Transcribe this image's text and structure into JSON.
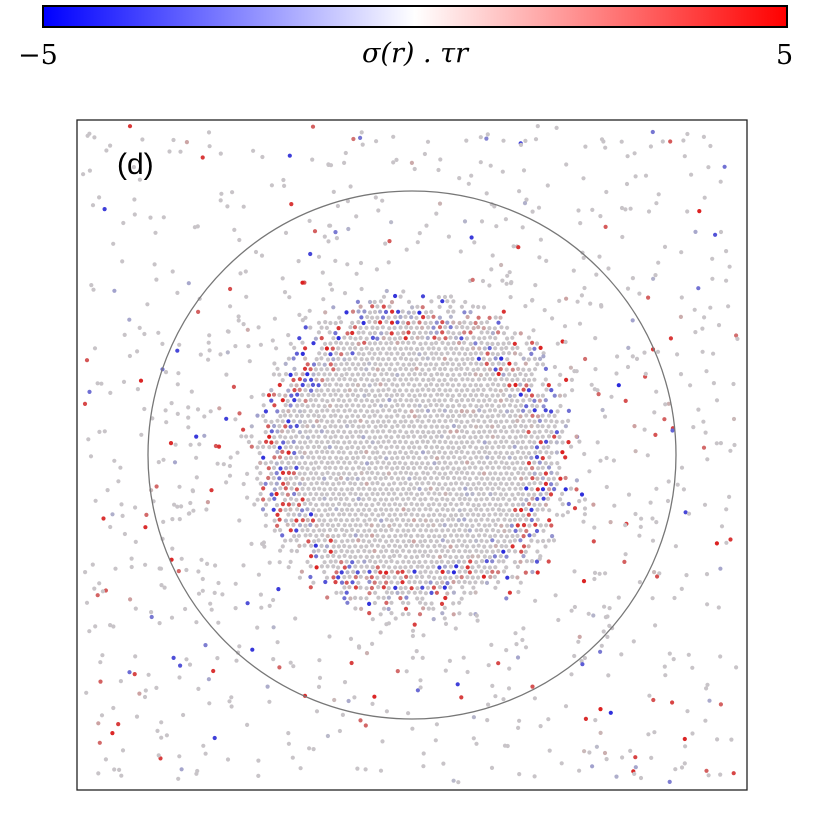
{
  "chart_data": {
    "type": "scatter",
    "panel_label": "(d)",
    "colorbar": {
      "label": "σ(r) . τr",
      "min": -5,
      "max": 5,
      "min_label": "−5",
      "max_label": "5",
      "colormap": "bwr",
      "colors": {
        "low": "#0000ff",
        "mid": "#ffffff",
        "high": "#ff0000"
      }
    },
    "particles": {
      "neutral_color": "#c8c4c8",
      "description_of_distribution": "dense circular cluster in the center with dilute gas outside",
      "cluster_radius_fraction": 0.46,
      "reference_circle_radius_fraction": 0.79
    },
    "axes": {
      "ticks_visible": false,
      "frame": true
    }
  }
}
